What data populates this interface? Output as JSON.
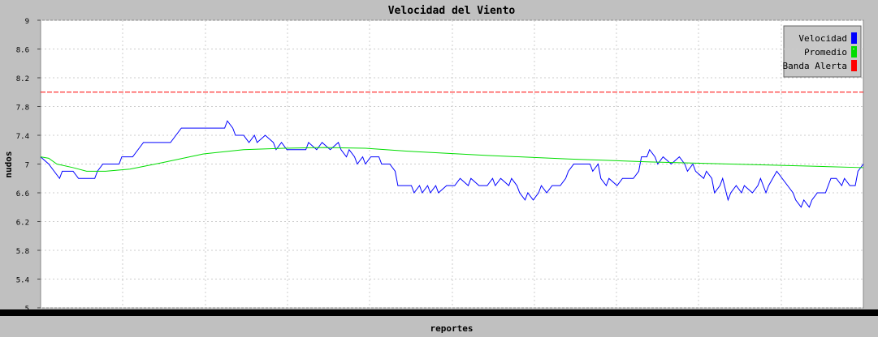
{
  "chart_data": {
    "type": "line",
    "title": "Velocidad del Viento",
    "x_label": "reportes",
    "y_label": "nudos",
    "ylim": [
      5,
      9
    ],
    "yticks": [
      5,
      5.4,
      5.8,
      6.2,
      6.6,
      7,
      7.4,
      7.8,
      8.2,
      8.6,
      9
    ],
    "xlim": [
      0,
      304
    ],
    "grid": true,
    "legend": "upper right",
    "series": [
      {
        "name": "Velocidad",
        "color": "#0000ff",
        "x": [
          0,
          3,
          5,
          7,
          8,
          12,
          14,
          20,
          21,
          23,
          29,
          30,
          34,
          36,
          38,
          48,
          50,
          52,
          68,
          69,
          71,
          72,
          75,
          77,
          79,
          80,
          83,
          86,
          87,
          89,
          91,
          98,
          99,
          102,
          104,
          107,
          110,
          111,
          113,
          114,
          116,
          117,
          119,
          120,
          122,
          125,
          126,
          129,
          131,
          132,
          137,
          138,
          140,
          141,
          143,
          144,
          146,
          147,
          150,
          153,
          155,
          158,
          159,
          162,
          165,
          167,
          168,
          170,
          173,
          174,
          176,
          177,
          179,
          180,
          182,
          184,
          185,
          187,
          189,
          192,
          194,
          195,
          197,
          203,
          204,
          206,
          207,
          209,
          210,
          213,
          215,
          219,
          221,
          222,
          224,
          225,
          227,
          228,
          230,
          233,
          236,
          238,
          239,
          241,
          242,
          245,
          246,
          248,
          249,
          251,
          252,
          254,
          255,
          257,
          259,
          260,
          263,
          265,
          266,
          268,
          269,
          272,
          274,
          276,
          278,
          279,
          281,
          282,
          284,
          285,
          287,
          290,
          292,
          294,
          296,
          297,
          299,
          301,
          302,
          304
        ],
        "values": [
          7.1,
          7.0,
          6.9,
          6.8,
          6.9,
          6.9,
          6.8,
          6.8,
          6.9,
          7.0,
          7.0,
          7.1,
          7.1,
          7.2,
          7.3,
          7.3,
          7.4,
          7.5,
          7.5,
          7.6,
          7.5,
          7.4,
          7.4,
          7.3,
          7.4,
          7.3,
          7.4,
          7.3,
          7.2,
          7.3,
          7.2,
          7.2,
          7.3,
          7.2,
          7.3,
          7.2,
          7.3,
          7.2,
          7.1,
          7.2,
          7.1,
          7.0,
          7.1,
          7.0,
          7.1,
          7.1,
          7.0,
          7.0,
          6.9,
          6.7,
          6.7,
          6.6,
          6.7,
          6.6,
          6.7,
          6.6,
          6.7,
          6.6,
          6.7,
          6.7,
          6.8,
          6.7,
          6.8,
          6.7,
          6.7,
          6.8,
          6.7,
          6.8,
          6.7,
          6.8,
          6.7,
          6.6,
          6.5,
          6.6,
          6.5,
          6.6,
          6.7,
          6.6,
          6.7,
          6.7,
          6.8,
          6.9,
          7.0,
          7.0,
          6.9,
          7.0,
          6.8,
          6.7,
          6.8,
          6.7,
          6.8,
          6.8,
          6.9,
          7.1,
          7.1,
          7.2,
          7.1,
          7.0,
          7.1,
          7.0,
          7.1,
          7.0,
          6.9,
          7.0,
          6.9,
          6.8,
          6.9,
          6.8,
          6.6,
          6.7,
          6.8,
          6.5,
          6.6,
          6.7,
          6.6,
          6.7,
          6.6,
          6.7,
          6.8,
          6.6,
          6.7,
          6.9,
          6.8,
          6.7,
          6.6,
          6.5,
          6.4,
          6.5,
          6.4,
          6.5,
          6.6,
          6.6,
          6.8,
          6.8,
          6.7,
          6.8,
          6.7,
          6.7,
          6.9,
          7.0
        ]
      },
      {
        "name": "Promedio",
        "color": "#00dd00",
        "x": [
          0,
          3,
          6,
          12,
          17,
          24,
          33,
          45,
          60,
          75,
          90,
          105,
          120,
          135,
          165,
          195,
          225,
          255,
          285,
          304
        ],
        "values": [
          7.1,
          7.08,
          7.0,
          6.95,
          6.9,
          6.9,
          6.93,
          7.02,
          7.14,
          7.2,
          7.22,
          7.23,
          7.22,
          7.18,
          7.12,
          7.07,
          7.03,
          7.0,
          6.97,
          6.95
        ]
      },
      {
        "name": "Banda Alerta",
        "color": "#ff0000",
        "dashed": true,
        "x": [
          0,
          304
        ],
        "values": [
          8,
          8
        ]
      }
    ]
  }
}
